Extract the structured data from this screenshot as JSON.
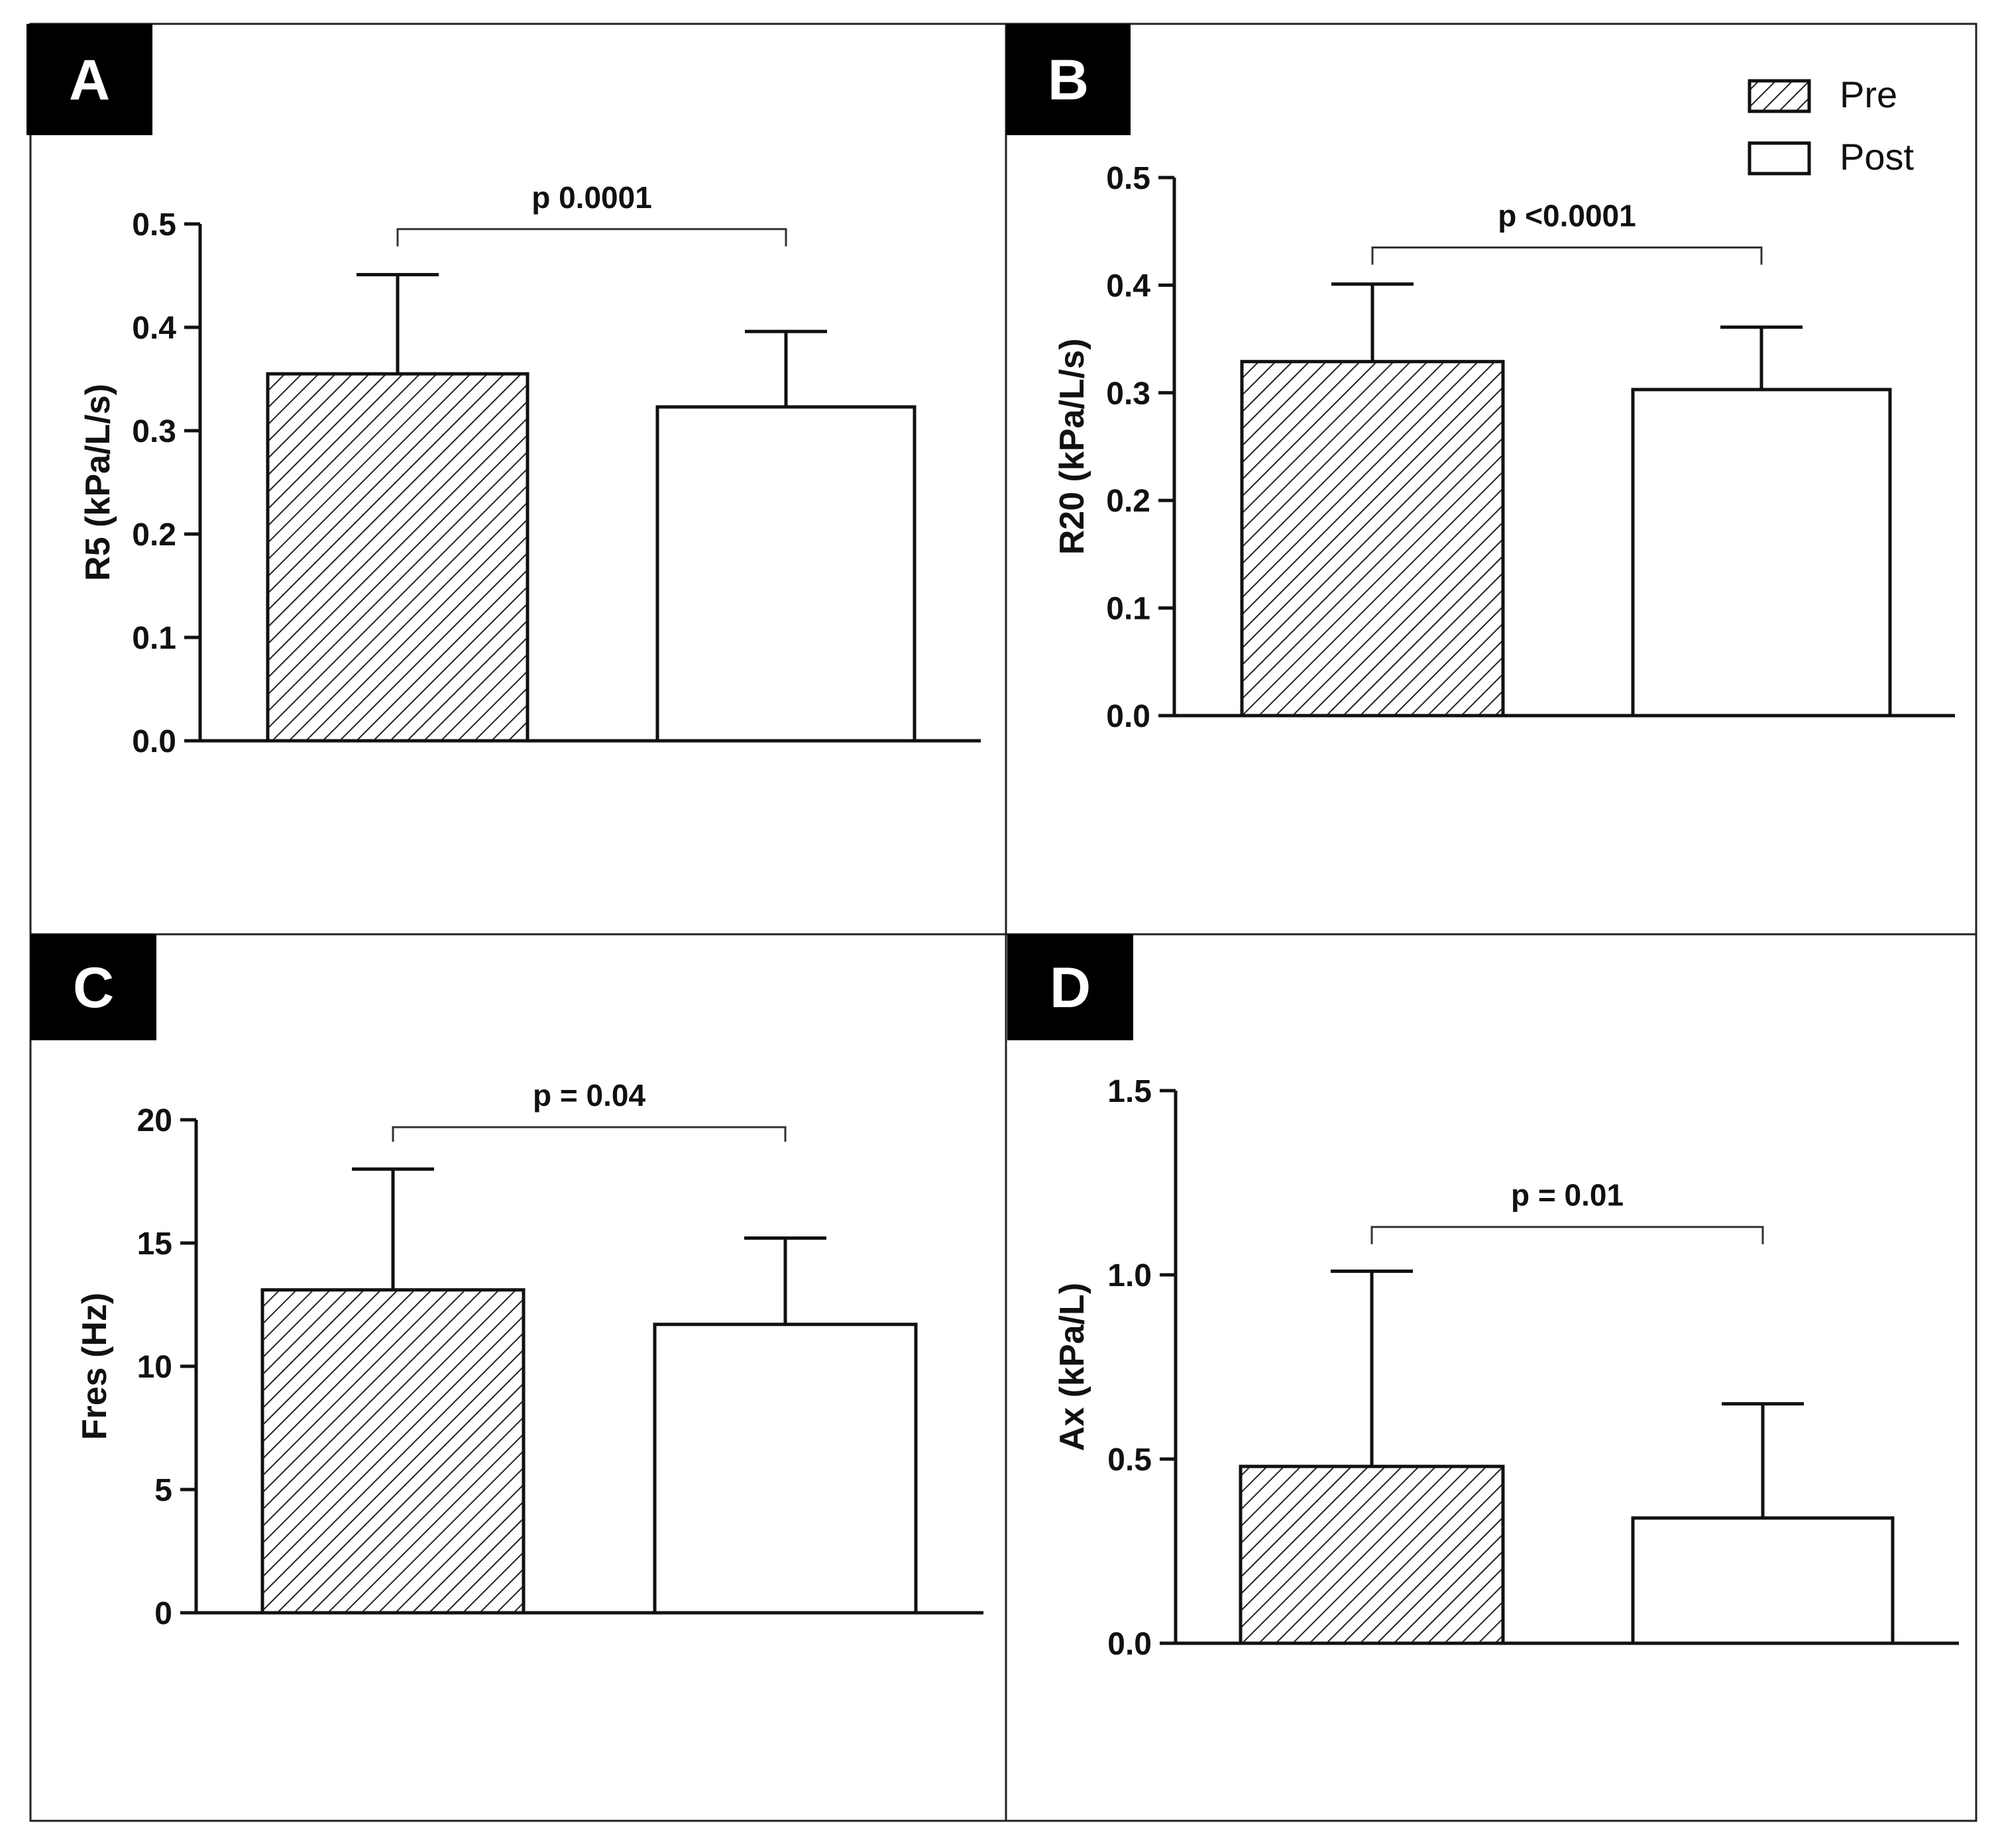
{
  "legend": {
    "items": [
      {
        "label": "Pre",
        "pattern": "hatched"
      },
      {
        "label": "Post",
        "pattern": "open"
      }
    ]
  },
  "chart_data": [
    {
      "panel": "A",
      "type": "bar",
      "categories": [
        "Pre",
        "Post"
      ],
      "values": [
        0.355,
        0.323
      ],
      "errors": [
        0.096,
        0.073
      ],
      "ylabel": "R5 (kPa/L/s)",
      "ylim": [
        0,
        0.5
      ],
      "yticks": [
        "0.0",
        "0.1",
        "0.2",
        "0.3",
        "0.4",
        "0.5"
      ],
      "ytick_values": [
        0,
        0.1,
        0.2,
        0.3,
        0.4,
        0.5
      ],
      "annotation": "p 0.0001",
      "bracket_y": 0.495
    },
    {
      "panel": "B",
      "type": "bar",
      "categories": [
        "Pre",
        "Post"
      ],
      "values": [
        0.329,
        0.303
      ],
      "errors": [
        0.072,
        0.058
      ],
      "ylabel": "R20 (kPa/L/s)",
      "ylim": [
        0,
        0.5
      ],
      "yticks": [
        "0.0",
        "0.1",
        "0.2",
        "0.3",
        "0.4",
        "0.5"
      ],
      "ytick_values": [
        0,
        0.1,
        0.2,
        0.3,
        0.4,
        0.5
      ],
      "annotation": "p <0.0001",
      "bracket_y": 0.435
    },
    {
      "panel": "C",
      "type": "bar",
      "categories": [
        "Pre",
        "Post"
      ],
      "values": [
        13.1,
        11.7
      ],
      "errors": [
        4.9,
        3.5
      ],
      "ylabel": "Fres (Hz)",
      "ylim": [
        0,
        20
      ],
      "yticks": [
        "0",
        "5",
        "10",
        "15",
        "20"
      ],
      "ytick_values": [
        0,
        5,
        10,
        15,
        20
      ],
      "annotation": "p = 0.04",
      "bracket_y": 19.7
    },
    {
      "panel": "D",
      "type": "bar",
      "categories": [
        "Pre",
        "Post"
      ],
      "values": [
        0.48,
        0.34
      ],
      "errors": [
        0.53,
        0.31
      ],
      "ylabel": "Ax (kPa/L)",
      "ylim": [
        0,
        1.5
      ],
      "yticks": [
        "0.0",
        "0.5",
        "1.0",
        "1.5"
      ],
      "ytick_values": [
        0,
        0.5,
        1.0,
        1.5
      ],
      "annotation": "p = 0.01",
      "bracket_y": 1.13
    }
  ]
}
